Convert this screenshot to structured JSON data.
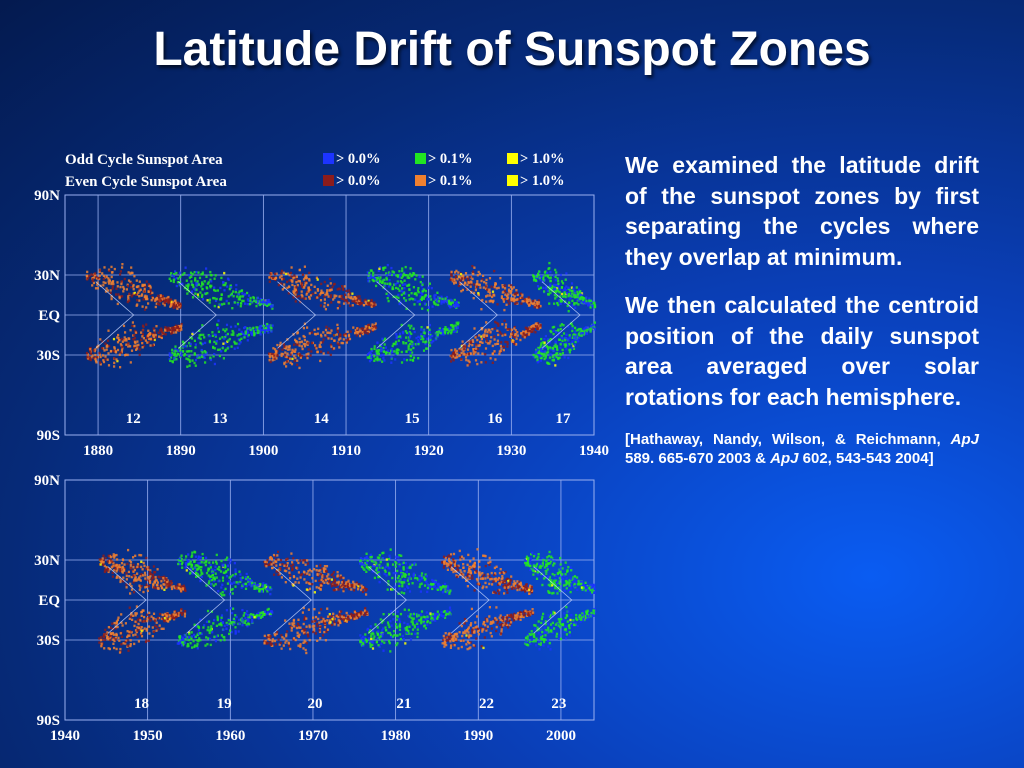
{
  "slide": {
    "title": "Latitude Drift of Sunspot Zones",
    "paragraph1": "We examined the latitude drift of the sunspot zones by first separating the cycles where they overlap at minimum.",
    "paragraph2": "We then calculated the centroid position of the daily sunspot area averaged over solar rotations for each hemisphere.",
    "citation_prefix": "[Hathaway, Nandy, Wilson, & Reichmann, ",
    "journal": "ApJ",
    "citation_middle": " 589. 665-670 2003 & ",
    "citation_suffix": " 602, 543-543 2004]"
  },
  "colors": {
    "odd_low": "#1c34ff",
    "odd_mid": "#22e622",
    "odd_high": "#ffff00",
    "even_low": "#8b1c1c",
    "even_mid": "#f08030",
    "even_high": "#ffff00",
    "plot_grid": "#9ab0f0",
    "background": "#0a3fb8"
  },
  "legend": {
    "odd_label": "Odd Cycle Sunspot Area",
    "even_label": "Even Cycle Sunspot Area",
    "thresholds": [
      "> 0.0%",
      "> 0.1%",
      "> 1.0%"
    ]
  },
  "chart_data": [
    {
      "type": "heatmap",
      "title": "",
      "xlabel": "",
      "ylabel": "",
      "xlim": [
        1876,
        1940
      ],
      "x_ticks": [
        "1880",
        "1890",
        "1900",
        "1910",
        "1920",
        "1930",
        "1940"
      ],
      "y_ticks": [
        "90N",
        "30N",
        "EQ",
        "30S",
        "90S"
      ],
      "cycles": [
        {
          "number": "12",
          "start": 1878.5,
          "end": 1890.0,
          "parity": "even"
        },
        {
          "number": "13",
          "start": 1888.5,
          "end": 1901.0,
          "parity": "odd"
        },
        {
          "number": "14",
          "start": 1900.5,
          "end": 1913.5,
          "parity": "even"
        },
        {
          "number": "15",
          "start": 1912.5,
          "end": 1923.5,
          "parity": "odd"
        },
        {
          "number": "16",
          "start": 1922.5,
          "end": 1933.5,
          "parity": "even"
        },
        {
          "number": "17",
          "start": 1932.5,
          "end": 1940.0,
          "parity": "odd"
        }
      ]
    },
    {
      "type": "heatmap",
      "title": "",
      "xlabel": "",
      "ylabel": "",
      "xlim": [
        1940,
        2004
      ],
      "x_ticks": [
        "1940",
        "1950",
        "1960",
        "1970",
        "1980",
        "1990",
        "2000"
      ],
      "y_ticks": [
        "90N",
        "30N",
        "EQ",
        "30S",
        "90S"
      ],
      "cycles": [
        {
          "number": "18",
          "start": 1944.0,
          "end": 1954.5,
          "parity": "even"
        },
        {
          "number": "19",
          "start": 1953.5,
          "end": 1965.0,
          "parity": "odd"
        },
        {
          "number": "20",
          "start": 1964.0,
          "end": 1976.5,
          "parity": "even"
        },
        {
          "number": "21",
          "start": 1975.5,
          "end": 1986.5,
          "parity": "odd"
        },
        {
          "number": "22",
          "start": 1985.5,
          "end": 1996.5,
          "parity": "even"
        },
        {
          "number": "23",
          "start": 1995.5,
          "end": 2004.0,
          "parity": "odd"
        }
      ]
    }
  ]
}
